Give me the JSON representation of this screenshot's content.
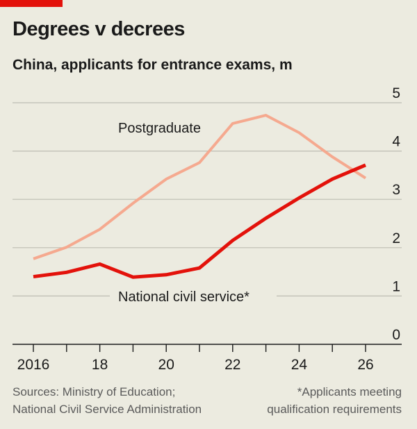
{
  "title": "Degrees v decrees",
  "subtitle": "China, applicants for entrance exams, m",
  "colors": {
    "background": "#ecebe0",
    "accent": "#e3120b",
    "postgraduate": "#f5a98f",
    "civil_service": "#e3120b"
  },
  "chart_data": {
    "type": "line",
    "title": "Degrees v decrees",
    "subtitle": "China, applicants for entrance exams, m",
    "x": [
      2016,
      2017,
      2018,
      2019,
      2020,
      2021,
      2022,
      2023,
      2024,
      2025,
      2026
    ],
    "x_tick_labels": [
      "2016",
      "18",
      "20",
      "22",
      "24",
      "26"
    ],
    "x_tick_values": [
      2016,
      2018,
      2020,
      2022,
      2024,
      2026
    ],
    "y_tick_labels": [
      "0",
      "1",
      "2",
      "3",
      "4",
      "5"
    ],
    "ylim": [
      0,
      5
    ],
    "y_axis_side": "right",
    "grid": true,
    "series": [
      {
        "name": "Postgraduate",
        "color": "#f5a98f",
        "values": [
          1.77,
          2.01,
          2.38,
          2.92,
          3.42,
          3.76,
          4.57,
          4.74,
          4.38,
          3.88,
          3.44
        ]
      },
      {
        "name": "National civil service*",
        "color": "#e3120b",
        "values": [
          1.4,
          1.49,
          1.66,
          1.39,
          1.44,
          1.58,
          2.15,
          2.61,
          3.03,
          3.42,
          3.71
        ]
      }
    ]
  },
  "footer": {
    "sources_line1": "Sources: Ministry of Education;",
    "sources_line2": "National Civil Service Administration",
    "note_line1": "*Applicants meeting",
    "note_line2": "qualification requirements"
  }
}
